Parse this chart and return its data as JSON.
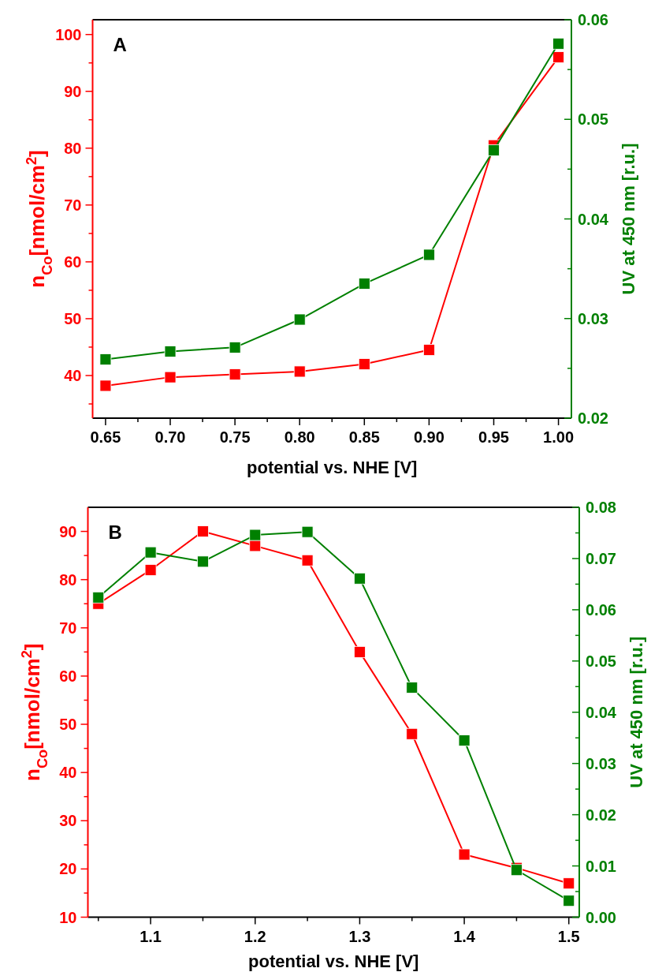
{
  "chart_data": [
    {
      "type": "line",
      "xlabel": "potential vs. NHE [V]",
      "ylabel": "n$_{Co}$[nmol/cm$^{2}$]",
      "y2label": "UV at 450 nm [r.u.]",
      "annotations": [
        "A"
      ],
      "marker": "square",
      "line_style": "solid",
      "grid": false,
      "x": [
        0.65,
        0.7,
        0.75,
        0.8,
        0.85,
        0.9,
        0.95,
        1.0
      ],
      "xlim": [
        0.64,
        1.01
      ],
      "xticks": [
        0.65,
        {
          "value": 0.675,
          "label": null
        },
        {
          "value": 0.7,
          "label": "0.70"
        },
        {
          "value": 0.725,
          "label": null
        },
        0.75,
        {
          "value": 0.775,
          "label": null
        },
        {
          "value": 0.8,
          "label": "0.80"
        },
        {
          "value": 0.825,
          "label": null
        },
        0.85,
        {
          "value": 0.875,
          "label": null
        },
        {
          "value": 0.9,
          "label": "0.90"
        },
        {
          "value": 0.925,
          "label": null
        },
        0.95,
        {
          "value": 0.975,
          "label": null
        },
        {
          "value": 1.0,
          "label": "1.00"
        }
      ],
      "ylim": [
        32.5,
        102.6
      ],
      "yticks": [
        {
          "value": 35,
          "label": null
        },
        40,
        {
          "value": 45,
          "label": null
        },
        50,
        {
          "value": 55,
          "label": null
        },
        60,
        {
          "value": 65,
          "label": null
        },
        70,
        {
          "value": 75,
          "label": null
        },
        80,
        {
          "value": 85,
          "label": null
        },
        90,
        {
          "value": 95,
          "label": null
        },
        100
      ],
      "y2lim": [
        0.02,
        0.06
      ],
      "y2ticks": [
        0.02,
        {
          "value": 0.025,
          "label": null
        },
        0.03,
        {
          "value": 0.035,
          "label": null
        },
        0.04,
        {
          "value": 0.045,
          "label": null
        },
        0.05,
        {
          "value": 0.055,
          "label": null
        },
        0.06
      ],
      "series": [
        {
          "color": "#ff0000",
          "values": [
            38.2,
            39.7,
            40.2,
            40.7,
            42.0,
            44.5,
            80.5,
            96.0
          ]
        },
        {
          "color": "#008000",
          "axis": "y2",
          "values": [
            0.0259,
            0.0267,
            0.0271,
            0.0299,
            0.0335,
            0.0364,
            0.0469,
            0.0576
          ]
        }
      ]
    },
    {
      "type": "line",
      "xlabel": "potential vs. NHE [V]",
      "ylabel": "n$_{Co}$[nmol/cm$^{2}$]",
      "y2label": "UV at 450 nm [r.u.]",
      "annotations": [
        "B"
      ],
      "marker": "square",
      "line_style": "solid",
      "grid": false,
      "x": [
        1.05,
        1.1,
        1.15,
        1.2,
        1.25,
        1.3,
        1.35,
        1.4,
        1.45,
        1.5
      ],
      "xlim": [
        1.04,
        1.51
      ],
      "xticks": [
        {
          "value": 1.05,
          "label": null
        },
        1.1,
        {
          "value": 1.15,
          "label": null
        },
        1.2,
        {
          "value": 1.25,
          "label": null
        },
        1.3,
        {
          "value": 1.35,
          "label": null
        },
        1.4,
        {
          "value": 1.45,
          "label": null
        },
        1.5
      ],
      "ylim": [
        10,
        95
      ],
      "yticks": [
        10,
        {
          "value": 15,
          "label": null
        },
        20,
        {
          "value": 25,
          "label": null
        },
        30,
        {
          "value": 35,
          "label": null
        },
        40,
        {
          "value": 45,
          "label": null
        },
        50,
        {
          "value": 55,
          "label": null
        },
        60,
        {
          "value": 65,
          "label": null
        },
        70,
        {
          "value": 75,
          "label": null
        },
        80,
        {
          "value": 85,
          "label": null
        },
        90
      ],
      "y2lim": [
        0,
        0.08
      ],
      "y2ticks": [
        {
          "value": 0,
          "label": "0.00"
        },
        {
          "value": 0.005,
          "label": null
        },
        0.01,
        {
          "value": 0.015,
          "label": null
        },
        0.02,
        {
          "value": 0.025,
          "label": null
        },
        0.03,
        {
          "value": 0.035,
          "label": null
        },
        0.04,
        {
          "value": 0.045,
          "label": null
        },
        0.05,
        {
          "value": 0.055,
          "label": null
        },
        0.06,
        {
          "value": 0.065,
          "label": null
        },
        0.07,
        {
          "value": 0.075,
          "label": null
        },
        0.08
      ],
      "series": [
        {
          "color": "#ff0000",
          "values": [
            75,
            82,
            90,
            87,
            84,
            65,
            48,
            23,
            20.2,
            17
          ]
        },
        {
          "color": "#008000",
          "axis": "y2",
          "values": [
            0.0624,
            0.0712,
            0.0694,
            0.0746,
            0.0752,
            0.0661,
            0.0448,
            0.0345,
            0.0092,
            0.0032
          ]
        }
      ]
    }
  ]
}
